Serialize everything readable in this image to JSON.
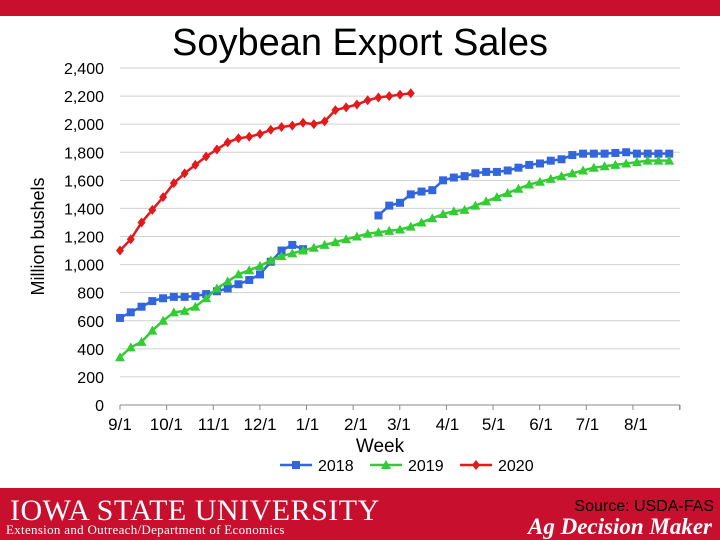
{
  "slide": {
    "title": "Soybean Export Sales",
    "source": "Source: USDA-FAS",
    "footer_logo": "IOWA STATE UNIVERSITY",
    "footer_dept": "Extension and Outreach/Department of Economics",
    "footer_brand": "Ag Decision Maker"
  },
  "colors": {
    "brand_red": "#c8102e",
    "series_2018": "#3366dd",
    "series_2019": "#33cc33",
    "series_2020": "#e31a1c"
  },
  "chart_data": {
    "type": "line",
    "title": "Soybean Export Sales",
    "xlabel": "Week",
    "ylabel": "Million bushels",
    "ylim": [
      0,
      2400
    ],
    "yticks": [
      0,
      200,
      400,
      600,
      800,
      1000,
      1200,
      1400,
      1600,
      1800,
      2000,
      2200,
      2400
    ],
    "xlim_weeks": [
      0,
      52
    ],
    "x_ticks": [
      {
        "label": "9/1",
        "week": 0
      },
      {
        "label": "10/1",
        "week": 4.3
      },
      {
        "label": "11/1",
        "week": 8.7
      },
      {
        "label": "12/1",
        "week": 13
      },
      {
        "label": "1/1",
        "week": 17.4
      },
      {
        "label": "2/1",
        "week": 21.9
      },
      {
        "label": "3/1",
        "week": 25.9
      },
      {
        "label": "4/1",
        "week": 30.4
      },
      {
        "label": "5/1",
        "week": 34.7
      },
      {
        "label": "6/1",
        "week": 39.1
      },
      {
        "label": "7/1",
        "week": 43.4
      },
      {
        "label": "8/1",
        "week": 47.9
      }
    ],
    "legend_position": "bottom",
    "grid": "horizontal",
    "series": [
      {
        "name": "2018",
        "marker": "square",
        "values": [
          620,
          660,
          700,
          740,
          760,
          770,
          770,
          775,
          790,
          810,
          830,
          860,
          890,
          930,
          1020,
          1100,
          1140,
          1110,
          null,
          null,
          null,
          null,
          null,
          null,
          1350,
          1420,
          1440,
          1500,
          1520,
          1530,
          1600,
          1620,
          1630,
          1650,
          1660,
          1660,
          1670,
          1690,
          1710,
          1720,
          1740,
          1750,
          1780,
          1790,
          1790,
          1790,
          1795,
          1800,
          1790,
          1790,
          1790,
          1790
        ]
      },
      {
        "name": "2019",
        "marker": "triangle",
        "values": [
          340,
          410,
          450,
          530,
          600,
          660,
          670,
          700,
          760,
          830,
          880,
          930,
          960,
          990,
          1030,
          1060,
          1080,
          1100,
          1120,
          1140,
          1160,
          1180,
          1200,
          1220,
          1230,
          1240,
          1250,
          1270,
          1300,
          1330,
          1360,
          1380,
          1390,
          1420,
          1450,
          1480,
          1510,
          1540,
          1570,
          1590,
          1610,
          1630,
          1650,
          1670,
          1690,
          1700,
          1710,
          1720,
          1730,
          1740,
          1740,
          1740
        ]
      },
      {
        "name": "2020",
        "marker": "diamond",
        "values": [
          1100,
          1180,
          1300,
          1390,
          1480,
          1580,
          1650,
          1710,
          1770,
          1820,
          1870,
          1900,
          1910,
          1930,
          1960,
          1980,
          1990,
          2010,
          2000,
          2020,
          2100,
          2120,
          2140,
          2170,
          2190,
          2200,
          2210,
          2220
        ]
      }
    ]
  }
}
